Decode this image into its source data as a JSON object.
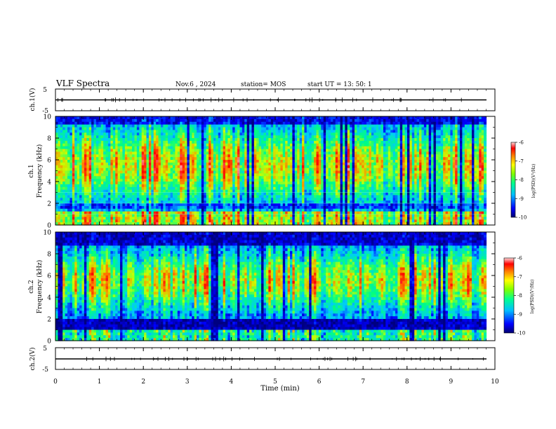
{
  "header": {
    "title": "VLF Spectra",
    "date": "Nov.6  , 2024",
    "station": "station= MOS",
    "start_ut": "start  UT =   13: 50: 1"
  },
  "chart_data": [
    {
      "type": "line",
      "name": "ch1-waveform",
      "ylabel": "ch.1(V)",
      "ylim": [
        -5,
        5
      ],
      "y_ticklabels": [
        "5",
        "-5"
      ],
      "x": [
        0,
        10
      ],
      "values": [
        0,
        0
      ]
    },
    {
      "type": "heatmap",
      "name": "ch1-spectrogram",
      "ylabel": "ch.1\nFrequency (kHz)",
      "ylim": [
        0,
        10
      ],
      "xlim": [
        0,
        10
      ],
      "y_ticklabels": [
        "0",
        "2",
        "4",
        "6",
        "8",
        "10"
      ],
      "data_extent_min": 9.8,
      "colorbar": {
        "label": "log(PSD)(V²/Hz)",
        "range": [
          -10,
          -6
        ],
        "ticklabels": [
          "-6",
          "-7",
          "-8",
          "-9",
          "-10"
        ]
      },
      "gridlines_khz": [
        1,
        2,
        3
      ]
    },
    {
      "type": "heatmap",
      "name": "ch2-spectrogram",
      "ylabel": "ch.2\nFrequency (kHz)",
      "ylim": [
        0,
        10
      ],
      "xlim": [
        0,
        10
      ],
      "y_ticklabels": [
        "0",
        "2",
        "4",
        "6",
        "8",
        "10"
      ],
      "data_extent_min": 9.8,
      "colorbar": {
        "label": "log(PSD)(V²/Hz)",
        "range": [
          -10,
          -6
        ],
        "ticklabels": [
          "-6",
          "-7",
          "-8",
          "-9",
          "-10"
        ]
      }
    },
    {
      "type": "line",
      "name": "ch2-waveform",
      "ylabel": "ch.2(V)",
      "ylim": [
        -5,
        5
      ],
      "y_ticklabels": [
        "5",
        "-5"
      ],
      "x": [
        0,
        10
      ],
      "values": [
        0,
        0
      ]
    }
  ],
  "xaxis": {
    "label": "Time  (min)",
    "range": [
      0,
      10
    ],
    "ticklabels": [
      "0",
      "1",
      "2",
      "3",
      "4",
      "5",
      "6",
      "7",
      "8",
      "9",
      "10"
    ]
  },
  "colors": {
    "colormap": [
      "#000080",
      "#0000ff",
      "#00c8ff",
      "#00ff80",
      "#c8ff00",
      "#ff8000",
      "#ff0000",
      "#ffd0d0"
    ]
  }
}
